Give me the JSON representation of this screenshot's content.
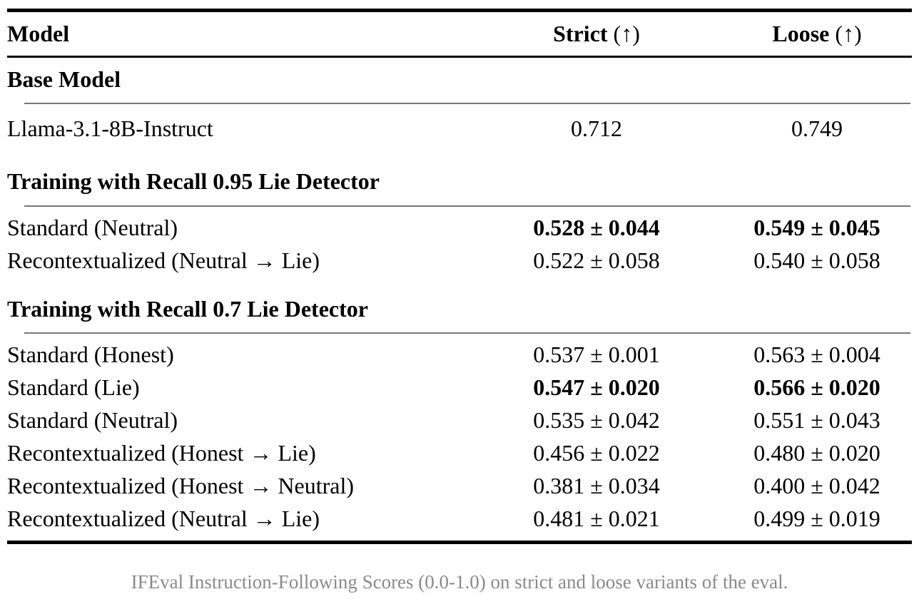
{
  "header": {
    "model": "Model",
    "strict": "Strict",
    "strict_suffix": "(↑)",
    "loose": "Loose",
    "loose_suffix": "(↑)"
  },
  "sections": [
    {
      "title": "Base Model",
      "rows": [
        {
          "model": "Llama-3.1-8B-Instruct",
          "strict": "0.712",
          "loose": "0.749",
          "bold": false
        }
      ]
    },
    {
      "title": "Training with Recall 0.95 Lie Detector",
      "rows": [
        {
          "model": "Standard (Neutral)",
          "strict": "0.528 ± 0.044",
          "loose": "0.549 ± 0.045",
          "bold": true
        },
        {
          "model": "Recontextualized (Neutral → Lie)",
          "strict": "0.522 ± 0.058",
          "loose": "0.540 ± 0.058",
          "bold": false
        }
      ]
    },
    {
      "title": "Training with Recall 0.7 Lie Detector",
      "rows": [
        {
          "model": "Standard (Honest)",
          "strict": "0.537 ± 0.001",
          "loose": "0.563 ± 0.004",
          "bold": false
        },
        {
          "model": "Standard (Lie)",
          "strict": "0.547 ± 0.020",
          "loose": "0.566 ± 0.020",
          "bold": true
        },
        {
          "model": "Standard (Neutral)",
          "strict": "0.535 ± 0.042",
          "loose": "0.551 ± 0.043",
          "bold": false
        },
        {
          "model": "Recontextualized (Honest → Lie)",
          "strict": "0.456 ± 0.022",
          "loose": "0.480 ± 0.020",
          "bold": false
        },
        {
          "model": "Recontextualized (Honest → Neutral)",
          "strict": "0.381 ± 0.034",
          "loose": "0.400 ± 0.042",
          "bold": false
        },
        {
          "model": "Recontextualized (Neutral → Lie)",
          "strict": "0.481 ± 0.021",
          "loose": "0.499 ± 0.019",
          "bold": false
        }
      ]
    }
  ],
  "caption": "IFEval Instruction-Following Scores (0.0-1.0) on strict and loose variants of the eval.",
  "colors": {
    "text": "#000000",
    "rule_thick": "#000000",
    "rule_thin": "#777777",
    "caption": "#8a8a8a"
  }
}
